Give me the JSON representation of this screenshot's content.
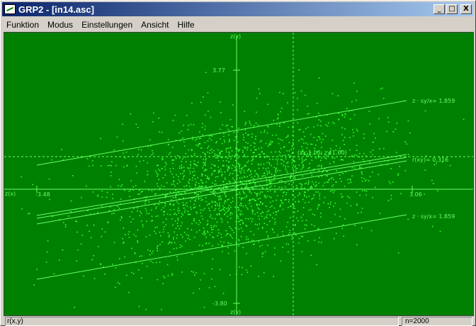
{
  "window": {
    "title": "GRP2 - [in14.asc]"
  },
  "titlebar_buttons": {
    "minimize": "_",
    "maximize": "□",
    "close": "X"
  },
  "menu": [
    "Funktion",
    "Modus",
    "Einstellungen",
    "Ansicht",
    "Hilfe"
  ],
  "status": {
    "left": "r(x,y)",
    "right": "n=2000"
  },
  "colors": {
    "plot_bg": "#008000",
    "points": "#33ff33",
    "lines": "#66ff66"
  },
  "chart_data": {
    "type": "scatter",
    "n_points": 2000,
    "x_axis_label": "z(x)",
    "y_axis_label_top": "z(y)",
    "y_axis_label_bottom": "z(y)",
    "xlim": [
      -3.48,
      3.06
    ],
    "ylim": [
      -3.8,
      3.77
    ],
    "x_tick_labels": [
      "-3.48",
      "3.06"
    ],
    "y_tick_labels": [
      "3.77",
      "-3.80"
    ],
    "correlation_r": 0.316,
    "mean_marker": {
      "x": 1.0,
      "y": 1.0
    },
    "annotations": {
      "upper_band": "z · sy/x= 1.859",
      "lower_band": "z · sy/x= 1.859",
      "regression": "r(xy)= 0,316",
      "point": "(zx:1.00; zy:1.00)"
    }
  }
}
